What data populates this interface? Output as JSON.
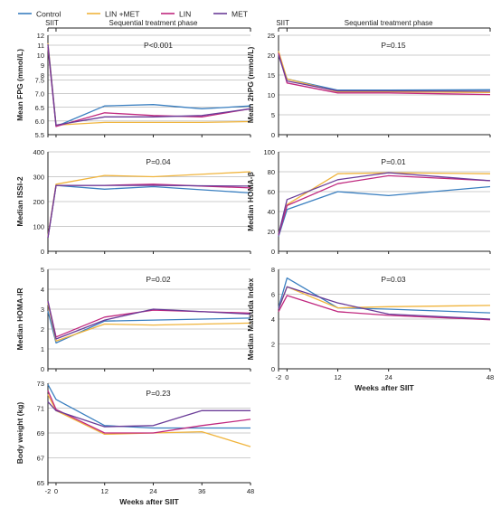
{
  "legend": [
    {
      "name": "Control",
      "color": "#3a7fc0"
    },
    {
      "name": "LIN +MET",
      "color": "#f0b43c"
    },
    {
      "name": "LIN",
      "color": "#c0287f"
    },
    {
      "name": "MET",
      "color": "#6a3c98"
    }
  ],
  "phase_labels": {
    "siit": "SIIT",
    "sequential": "Sequential treatment phase"
  },
  "chart_data": [
    {
      "type": "line",
      "ylabel": "Mean FPG (mmol/L)",
      "annotation": "P<0.001",
      "ylim": [
        5.5,
        12
      ],
      "yticks": [
        "5.5",
        "6.0",
        "6.5",
        "7.0",
        "7.5",
        "8",
        "9",
        "10",
        "11",
        "12"
      ],
      "x": [
        -2,
        0,
        12,
        24,
        36,
        48
      ],
      "xticks": [
        "-2",
        "0",
        "12",
        "24",
        "36",
        "48"
      ],
      "series": [
        {
          "name": "Control",
          "values": [
            11.0,
            5.8,
            6.55,
            6.6,
            6.45,
            6.55
          ]
        },
        {
          "name": "LIN +MET",
          "values": [
            11.2,
            5.85,
            5.95,
            5.95,
            5.95,
            5.98
          ]
        },
        {
          "name": "LIN",
          "values": [
            10.8,
            5.8,
            6.3,
            6.2,
            6.15,
            6.45
          ]
        },
        {
          "name": "MET",
          "values": [
            11.1,
            5.85,
            6.15,
            6.15,
            6.2,
            6.45
          ]
        }
      ]
    },
    {
      "type": "line",
      "ylabel": "Mean 2hPG (mmol/L)",
      "annotation": "P=0.15",
      "ylim": [
        0,
        25
      ],
      "yticks": [
        "0",
        "5",
        "10",
        "15",
        "20",
        "25"
      ],
      "x": [
        -2,
        0,
        12,
        24,
        48
      ],
      "xticks": [
        "-2",
        "0",
        "12",
        "24",
        "48"
      ],
      "series": [
        {
          "name": "Control",
          "values": [
            20.2,
            14.0,
            11.2,
            11.2,
            11.3
          ]
        },
        {
          "name": "LIN +MET",
          "values": [
            21.0,
            14.0,
            10.8,
            10.8,
            10.6
          ]
        },
        {
          "name": "LIN",
          "values": [
            20.5,
            13.0,
            10.5,
            10.5,
            10.1
          ]
        },
        {
          "name": "MET",
          "values": [
            20.0,
            13.5,
            11.0,
            11.0,
            10.9
          ]
        }
      ]
    },
    {
      "type": "line",
      "ylabel": "Median ISSI-2",
      "annotation": "P=0.04",
      "ylim": [
        0,
        400
      ],
      "yticks": [
        "0",
        "100",
        "200",
        "300",
        "400"
      ],
      "x": [
        -2,
        0,
        12,
        24,
        48
      ],
      "xticks": [
        "-2",
        "0",
        "12",
        "24",
        "48"
      ],
      "series": [
        {
          "name": "Control",
          "values": [
            55,
            265,
            250,
            260,
            235
          ]
        },
        {
          "name": "LIN +MET",
          "values": [
            60,
            270,
            305,
            300,
            320
          ]
        },
        {
          "name": "LIN",
          "values": [
            55,
            265,
            265,
            270,
            255
          ]
        },
        {
          "name": "MET",
          "values": [
            55,
            265,
            265,
            265,
            262
          ]
        }
      ]
    },
    {
      "type": "line",
      "ylabel": "Median HOMA-β",
      "annotation": "P=0.01",
      "ylim": [
        0,
        100
      ],
      "yticks": [
        "0",
        "20",
        "40",
        "60",
        "80",
        "100"
      ],
      "x": [
        -2,
        0,
        12,
        24,
        48
      ],
      "xticks": [
        "-2",
        "0",
        "12",
        "24",
        "48"
      ],
      "series": [
        {
          "name": "Control",
          "values": [
            15,
            42,
            60,
            56,
            65
          ]
        },
        {
          "name": "LIN +MET",
          "values": [
            18,
            47,
            78,
            79,
            78
          ]
        },
        {
          "name": "LIN",
          "values": [
            16,
            46,
            68,
            76,
            71
          ]
        },
        {
          "name": "MET",
          "values": [
            17,
            52,
            72,
            79,
            71
          ]
        }
      ]
    },
    {
      "type": "line",
      "ylabel": "Median HOMA-IR",
      "annotation": "P=0.02",
      "ylim": [
        0,
        5
      ],
      "yticks": [
        "0",
        "1",
        "2",
        "3",
        "4",
        "5"
      ],
      "x": [
        -2,
        0,
        12,
        24,
        48
      ],
      "xticks": [
        "-2",
        "0",
        "12",
        "24",
        "48"
      ],
      "series": [
        {
          "name": "Control",
          "values": [
            2.9,
            1.3,
            2.4,
            2.45,
            2.55
          ]
        },
        {
          "name": "LIN +MET",
          "values": [
            3.3,
            1.4,
            2.25,
            2.2,
            2.3
          ]
        },
        {
          "name": "LIN",
          "values": [
            3.4,
            1.6,
            2.6,
            2.95,
            2.8
          ]
        },
        {
          "name": "MET",
          "values": [
            3.4,
            1.5,
            2.45,
            3.0,
            2.75
          ]
        }
      ]
    },
    {
      "type": "line",
      "ylabel": "Median Matsuda Index",
      "annotation": "P=0.03",
      "ylim": [
        0,
        8
      ],
      "yticks": [
        "0",
        "2",
        "4",
        "6",
        "8"
      ],
      "x": [
        -2,
        0,
        12,
        24,
        48
      ],
      "xticks": [
        "-2",
        "0",
        "12",
        "24",
        "48"
      ],
      "xlabel": "Weeks after SIIT",
      "series": [
        {
          "name": "Control",
          "values": [
            4.9,
            7.3,
            4.9,
            4.8,
            4.5
          ]
        },
        {
          "name": "LIN +MET",
          "values": [
            4.8,
            6.6,
            4.9,
            5.0,
            5.1
          ]
        },
        {
          "name": "LIN",
          "values": [
            4.6,
            5.9,
            4.6,
            4.3,
            3.95
          ]
        },
        {
          "name": "MET",
          "values": [
            4.8,
            6.6,
            5.3,
            4.4,
            4.0
          ]
        }
      ]
    },
    {
      "type": "line",
      "ylabel": "Body weight (kg)",
      "annotation": "P=0.23",
      "ylim": [
        65,
        73
      ],
      "yticks": [
        "65",
        "67",
        "69",
        "71",
        "73"
      ],
      "x": [
        -2,
        0,
        12,
        24,
        36,
        48
      ],
      "xticks": [
        "-2",
        "0",
        "12",
        "24",
        "36",
        "48"
      ],
      "xlabel": "Weeks after SIIT",
      "series": [
        {
          "name": "Control",
          "values": [
            72.9,
            71.7,
            69.6,
            69.4,
            69.4,
            69.4
          ]
        },
        {
          "name": "LIN +MET",
          "values": [
            72.1,
            70.8,
            68.9,
            69.0,
            69.1,
            67.9
          ]
        },
        {
          "name": "LIN",
          "values": [
            72.4,
            70.9,
            69.0,
            69.0,
            69.6,
            70.1
          ]
        },
        {
          "name": "MET",
          "values": [
            71.5,
            70.8,
            69.5,
            69.6,
            70.8,
            70.8
          ]
        }
      ]
    }
  ]
}
